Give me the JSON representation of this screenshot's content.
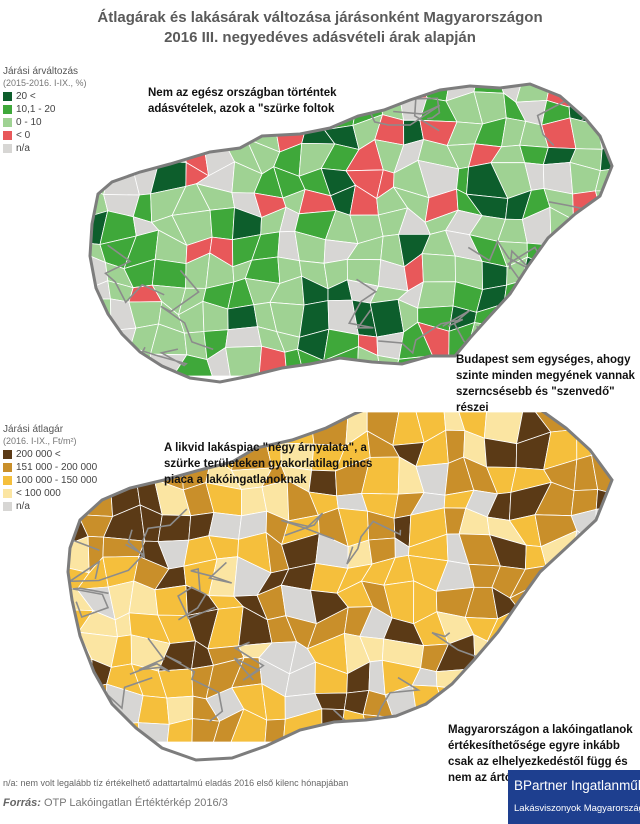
{
  "title_line1": "Átlagárak és lakásárak változása járásonként Magyarországon",
  "title_line2": "2016 III. negyedéves adásvételi árak alapján",
  "map1": {
    "legend_title": "Járási árváltozás",
    "legend_subtitle": "(2015-2016. I-IX., %)",
    "legend": [
      {
        "label": "20 <",
        "color": "#0d5e2c"
      },
      {
        "label": "10,1 - 20",
        "color": "#3fa83a"
      },
      {
        "label": "0 - 10",
        "color": "#9fd293"
      },
      {
        "label": "< 0",
        "color": "#e8585a"
      },
      {
        "label": "n/a",
        "color": "#d7d6d4"
      }
    ],
    "annotation_top": [
      "Nem az egész országban történtek",
      "adásvételek, azok a \"szürke foltok"
    ],
    "annotation_bottom": [
      "Budapest sem egységes, ahogy",
      "szinte minden megyének vannak",
      "szerncsésebb és \"szenvedő\"",
      "részei"
    ]
  },
  "map2": {
    "legend_title": "Járási átlagár",
    "legend_subtitle": "(2016. I-IX., Ft/m²)",
    "legend": [
      {
        "label": "200 000 <",
        "color": "#5b3a16"
      },
      {
        "label": "151 000 - 200 000",
        "color": "#c98f2a"
      },
      {
        "label": "100 000 - 150 000",
        "color": "#f5bf3c"
      },
      {
        "label": "< 100 000",
        "color": "#fbe5a2"
      },
      {
        "label": "n/a",
        "color": "#d7d6d4"
      }
    ],
    "annotation_top": [
      "A likvid lakáspiac \"négy árnyalata\", a",
      "szürke területeken gyakorlatilag nincs",
      "piaca a lakóingatlanoknak"
    ],
    "annotation_bottom": [
      "Magyarországon a lakóingatlanok",
      "értékesíthetősége egyre inkább",
      "csak az elhelyezkedéstől függ és",
      "nem az ártól"
    ]
  },
  "footnote": "n/a: nem volt legalább tíz értékelhető adattartalmú eladás 2016 első kilenc hónapjában",
  "source_label": "Forrás:",
  "source_text": " OTP Lakóingatlan Értéktérkép 2016/3",
  "brand_line1": "BPartner Ingatlanműhely",
  "brand_line2": "Lakásviszonyok Magyarországon"
}
